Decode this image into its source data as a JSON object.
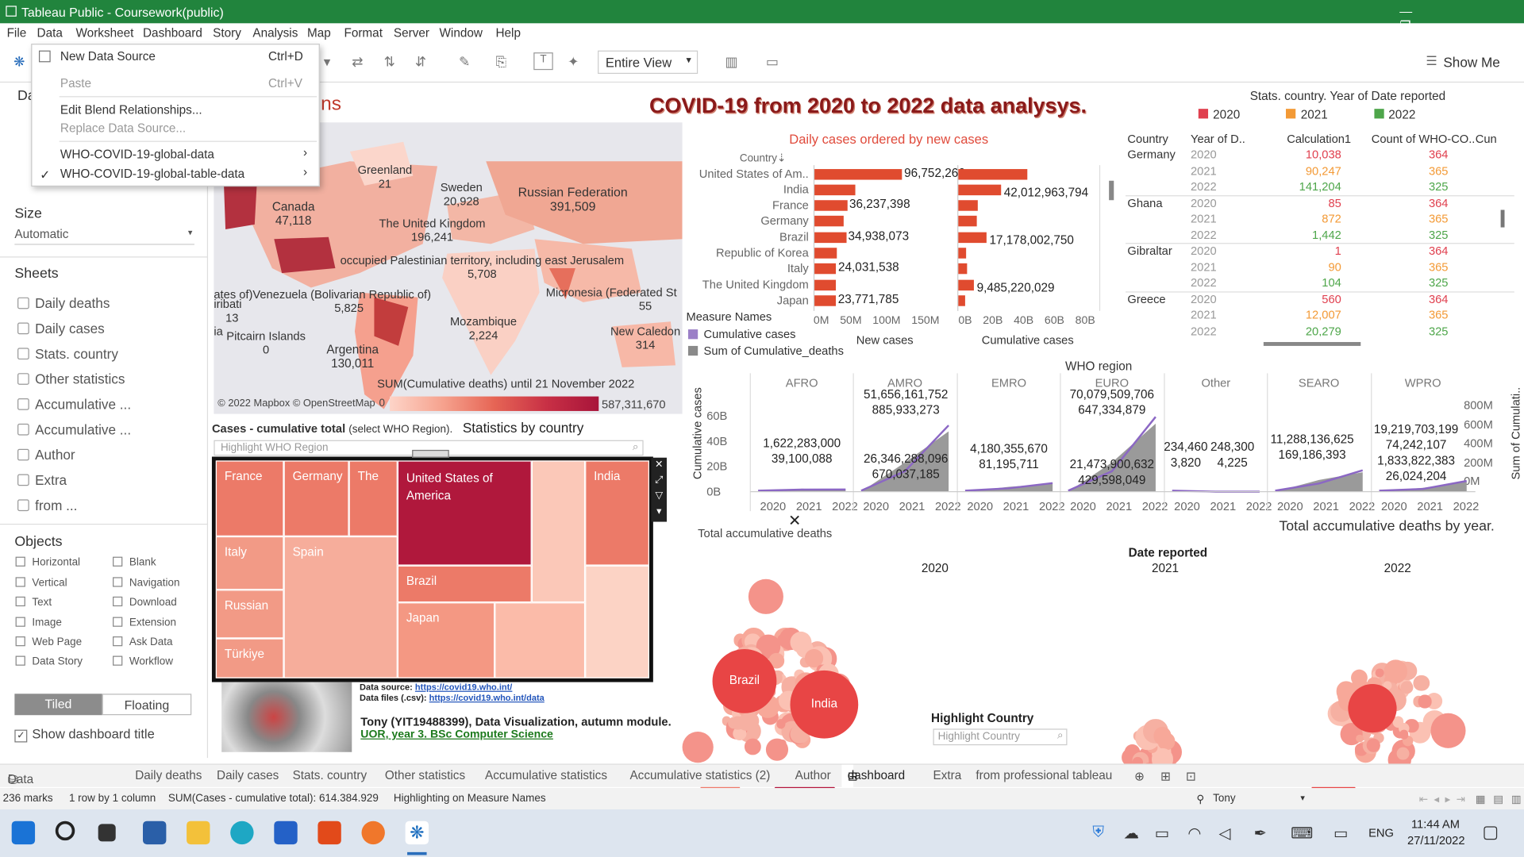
{
  "window": {
    "title": "Tableau Public - Coursework(public)",
    "ctrl": "— ❐ ✕"
  },
  "menu": [
    "File",
    "Data",
    "Worksheet",
    "Dashboard",
    "Story",
    "Analysis",
    "Map",
    "Format",
    "Server",
    "Window",
    "Help"
  ],
  "data_menu": {
    "new_source": "New Data Source",
    "new_sc": "Ctrl+D",
    "paste": "Paste",
    "paste_sc": "Ctrl+V",
    "edit_blend": "Edit Blend Relationships...",
    "replace": "Replace Data Source...",
    "src1": "WHO-COVID-19-global-data",
    "src2": "WHO-COVID-19-global-table-data",
    "check": "✓",
    "arrow": "›"
  },
  "toolbar": {
    "view": "Entire View",
    "show_me": "Show Me"
  },
  "left": {
    "data_hdr": "Da",
    "size_hdr": "Size",
    "size_val": "Automatic",
    "sheets_hdr": "Sheets",
    "sheets": [
      "Daily deaths",
      "Daily cases",
      "Stats. country",
      "Other statistics",
      "Accumulative ...",
      "Accumulative ...",
      "Author",
      "Extra",
      "from ..."
    ],
    "objects_hdr": "Objects",
    "objects": [
      "Horizontal",
      "Blank",
      "Vertical",
      "Navigation",
      "Text",
      "Download",
      "Image",
      "Extension",
      "Web Page",
      "Ask Data",
      "Data Story",
      "Workflow"
    ],
    "tiled": "Tiled",
    "floating": "Floating",
    "show_title": "Show dashboard title"
  },
  "dashboard": {
    "title": "COVID-19 from 2020 to 2022 data analysys.",
    "ns_frag": "ns"
  },
  "map": {
    "labels": [
      "Greenland",
      "21",
      "Sweden",
      "20,928",
      "Russian Federation",
      "391,509",
      "Canada",
      "47,118",
      "The United Kingdom",
      "196,241",
      "occupied Palestinian territory, including east Jerusalem",
      "5,708",
      "ates of)Venezuela (Bolivarian Republic of)",
      "5,825",
      "Micronesia (Federated St",
      "55",
      "iribati",
      "13",
      "Mozambique",
      "2,224",
      "ia",
      "Pitcairn Islands",
      "0",
      "Argentina",
      "130,011",
      "New Caledon",
      "314"
    ],
    "legend_title": "SUM(Cumulative deaths) until 21 November 2022",
    "copyright": "© 2022 Mapbox © OpenStreetMap",
    "min": "0",
    "max": "587,311,670"
  },
  "daily": {
    "title": "Daily cases ordered by new cases",
    "col_hdr": "Country",
    "sort": "⇣",
    "countries": [
      "United States of Am..",
      "India",
      "France",
      "Germany",
      "Brazil",
      "Republic of Korea",
      "Italy",
      "The United Kingdom",
      "Japan"
    ],
    "new_cases": [
      96752266,
      44600000,
      36237398,
      32600000,
      34938073,
      25000000,
      24031538,
      23500000,
      23771785
    ],
    "new_labels": [
      "96,752,266",
      "",
      "36,237,398",
      "",
      "34,938,073",
      "",
      "24,031,538",
      "",
      "23,771,785"
    ],
    "cum_cases": [
      42012963794,
      26000000000,
      12000000000,
      11000000000,
      17178002750,
      5000000000,
      5500000000,
      9485220029,
      4000000000
    ],
    "cum_labels": [
      "",
      "42,012,963,794",
      "",
      "",
      "17,178,002,750",
      "",
      "",
      "9,485,220,029",
      ""
    ],
    "axis_new": [
      "0M",
      "50M",
      "100M",
      "150M"
    ],
    "axis_cum": [
      "0B",
      "20B",
      "40B",
      "60B",
      "80B"
    ],
    "lbl_new": "New cases",
    "lbl_cum": "Cumulative cases",
    "mn_title": "Measure Names",
    "mn": [
      "Cumulative cases",
      "Sum of Cumulative_deaths"
    ],
    "mn_colors": [
      "#9b7fc7",
      "#8a8a8a"
    ]
  },
  "stats": {
    "title": "Stats. country. Year of Date reported",
    "legend": [
      "2020",
      "2021",
      "2022"
    ],
    "legend_colors": [
      "#e0404f",
      "#f39a36",
      "#4ea64a"
    ],
    "headers": [
      "Country",
      "Year of D..",
      "Calculation1",
      "Count of WHO-CO..",
      "Cun"
    ],
    "rows": [
      [
        "Germany",
        "2020",
        "10,038",
        "364"
      ],
      [
        "",
        "2021",
        "90,247",
        "365"
      ],
      [
        "",
        "2022",
        "141,204",
        "325"
      ],
      [
        "Ghana",
        "2020",
        "85",
        "364"
      ],
      [
        "",
        "2021",
        "872",
        "365"
      ],
      [
        "",
        "2022",
        "1,442",
        "325"
      ],
      [
        "Gibraltar",
        "2020",
        "1",
        "364"
      ],
      [
        "",
        "2021",
        "90",
        "365"
      ],
      [
        "",
        "2022",
        "104",
        "325"
      ],
      [
        "Greece",
        "2020",
        "560",
        "364"
      ],
      [
        "",
        "2021",
        "12,007",
        "365"
      ],
      [
        "",
        "2022",
        "20,279",
        "325"
      ]
    ]
  },
  "region": {
    "title": "WHO region",
    "regions": [
      "AFRO",
      "AMRO",
      "EMRO",
      "EURO",
      "Other",
      "SEARO",
      "WPRO"
    ],
    "ylab": "Cumulative cases",
    "ylab2": "Sum of Cumulati..",
    "yticks": [
      "60B",
      "40B",
      "20B",
      "0B"
    ],
    "yticks2": [
      "800M",
      "600M",
      "400M",
      "200M",
      "0M"
    ],
    "years": [
      "2020",
      "2021",
      "2022"
    ],
    "labels": [
      "1,622,283,000",
      "39,100,088",
      "51,656,161,752",
      "885,933,273",
      "26,346,288,096",
      "670,037,185",
      "4,180,355,670",
      "81,195,711",
      "70,079,509,706",
      "647,334,879",
      "21,473,900,632",
      "429,598,049",
      "234,460",
      "3,820",
      "248,300",
      "4,225",
      "11,288,136,625",
      "169,186,393",
      "19,219,703,199",
      "74,242,107",
      "1,833,822,383",
      "26,024,204"
    ],
    "footer": "Total accumulative deaths by year."
  },
  "treemap": {
    "title": "Cases - cumulative total",
    "sel": "(select WHO Region).",
    "stats": "Statistics by country",
    "highlight": "Highlight WHO Region",
    "cells": [
      "France",
      "Germany",
      "The",
      "United States of America",
      "India",
      "Italy",
      "Spain",
      "Brazil",
      "Russian",
      "Türkiye",
      "Japan"
    ]
  },
  "author": {
    "src1": "Data source:",
    "url1": "https://covid19.who.int/",
    "src2": "Data files (.csv):",
    "url2": "https://covid19.who.int/data",
    "name": "Tony (YIT19488399), Data Visualization, autumn module.",
    "uni": "UOR, year 3. BSc Computer Science"
  },
  "bubbles": {
    "title": "Total accumulative deaths",
    "date": "Date reported",
    "years": [
      "2020",
      "2021",
      "2022"
    ],
    "brazil": "Brazil",
    "india": "India",
    "highlight": "Highlight Country",
    "hl_ph": "Highlight Country"
  },
  "tabs": [
    "Data Source",
    "Daily deaths",
    "Daily cases",
    "Stats. country",
    "Other statistics",
    "Accumulative statistics",
    "Accumulative statistics (2)",
    "Author",
    "dashboard",
    "Extra",
    "from professional tableau"
  ],
  "status": {
    "marks": "236 marks",
    "rc": "1 row by 1 column",
    "sum": "SUM(Cases - cumulative total): 614.384.929",
    "hl": "Highlighting on Measure Names",
    "user": "Tony"
  },
  "taskbar": {
    "lang": "ENG",
    "time": "11:44 AM",
    "date": "27/11/2022"
  }
}
